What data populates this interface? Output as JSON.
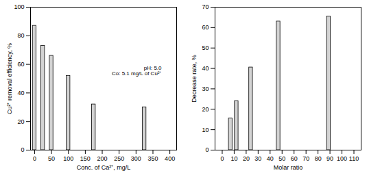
{
  "chart_data": [
    {
      "type": "bar",
      "x": [
        0,
        25,
        50,
        100,
        175,
        325
      ],
      "values": [
        87,
        73,
        66,
        52,
        32,
        30
      ],
      "xlim": [
        -12,
        420
      ],
      "xticks": [
        0,
        50,
        100,
        150,
        200,
        250,
        300,
        350,
        400
      ],
      "ylim": [
        0,
        100
      ],
      "yticks": [
        0,
        20,
        40,
        60,
        80,
        100
      ],
      "xlabel": "Conc. of Ca²⁺, mg/L",
      "ylabel": "Cu²⁺ removal efficiency, %",
      "annotations": [
        "pH: 5.0",
        "Co: 5.1 mg/L of Cu²⁺"
      ],
      "color": "#d3d3d3"
    },
    {
      "type": "bar",
      "x": [
        7,
        12,
        24,
        47,
        89
      ],
      "values": [
        15.5,
        24,
        40.5,
        63,
        65.5
      ],
      "xlim": [
        -6,
        116
      ],
      "xticks": [
        0,
        10,
        20,
        30,
        40,
        50,
        60,
        70,
        80,
        90,
        100,
        110
      ],
      "ylim": [
        0,
        70
      ],
      "yticks": [
        0,
        10,
        20,
        30,
        40,
        50,
        60,
        70
      ],
      "xlabel": "Molar ratio",
      "ylabel": "Decrease rate, %",
      "color": "#d3d3d3"
    }
  ]
}
